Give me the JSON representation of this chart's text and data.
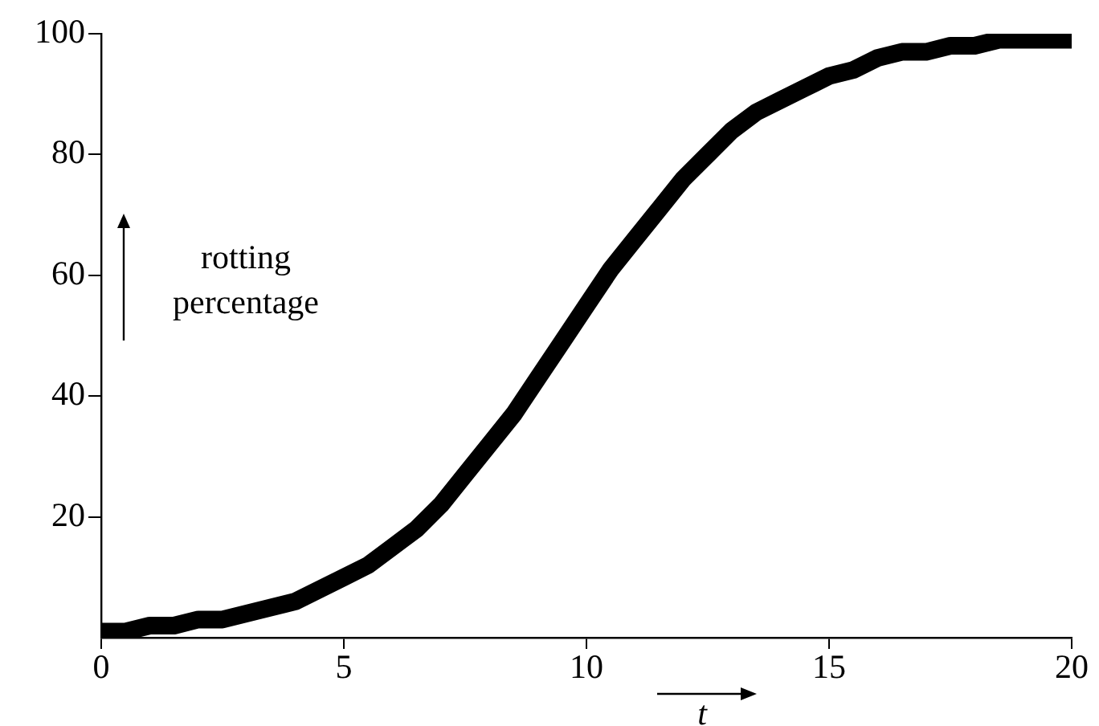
{
  "chart_data": {
    "type": "line",
    "xlabel": "t",
    "ylabel": "rotting percentage",
    "color": "#000000",
    "marker": "none",
    "line_style": "solid",
    "grid": false,
    "legend": false,
    "x": [
      0,
      0.5,
      1,
      1.5,
      2,
      2.5,
      3,
      3.5,
      4,
      4.5,
      5,
      5.5,
      6,
      6.5,
      7,
      7.5,
      8,
      8.5,
      9,
      9.5,
      10,
      10.5,
      11,
      11.5,
      12,
      12.5,
      13,
      13.5,
      14,
      14.5,
      15,
      15.5,
      16,
      16.5,
      17,
      17.5,
      18,
      18.5,
      19,
      19.5,
      20
    ],
    "values": [
      1,
      1,
      2,
      2,
      3,
      3,
      4,
      5,
      6,
      8,
      10,
      12,
      15,
      18,
      22,
      27,
      32,
      37,
      43,
      49,
      55,
      61,
      66,
      71,
      76,
      80,
      84,
      87,
      89,
      91,
      93,
      94,
      96,
      97,
      97,
      98,
      98,
      99,
      99,
      99,
      99
    ],
    "xlim": [
      0,
      20
    ],
    "xticks": [
      0,
      5,
      10,
      15,
      20
    ],
    "ylim": [
      0,
      100
    ],
    "yticks": [
      20,
      40,
      60,
      80,
      100
    ]
  }
}
